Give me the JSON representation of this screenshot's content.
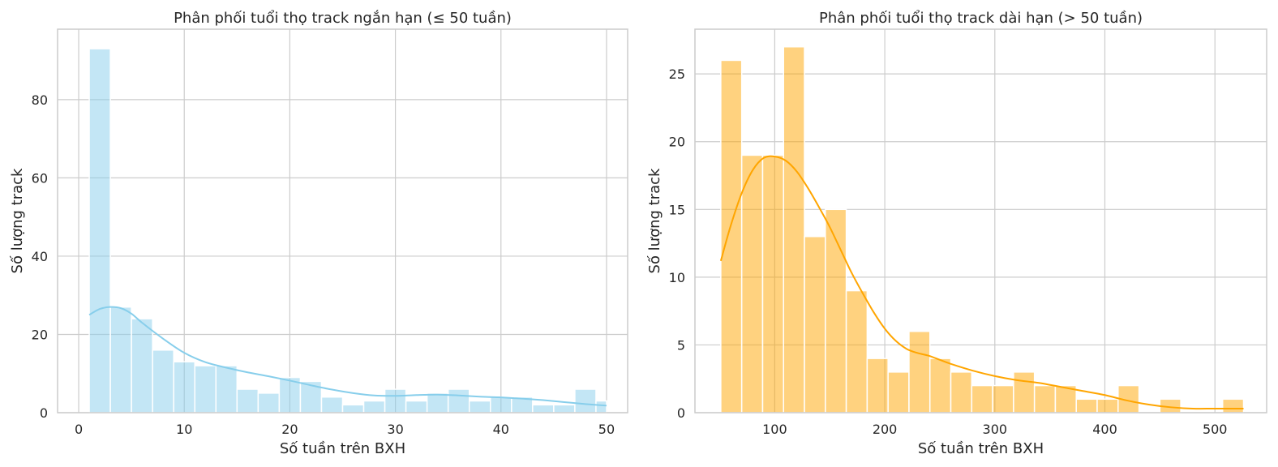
{
  "chart_data": [
    {
      "type": "bar",
      "title": "Phân phối tuổi thọ track ngắn hạn (≤ 50 tuần)",
      "xlabel": "Số tuần trên BXH",
      "ylabel": "Số lượng track",
      "xlim": [
        -2,
        52
      ],
      "ylim": [
        0,
        98
      ],
      "xticks": [
        0,
        10,
        20,
        30,
        40,
        50
      ],
      "yticks": [
        0,
        20,
        40,
        60,
        80
      ],
      "grid": true,
      "bar_color": "#87CEEB",
      "kde_color": "#87CEEB",
      "bins": [
        {
          "x0": 1,
          "x1": 3,
          "value": 93
        },
        {
          "x0": 3,
          "x1": 5,
          "value": 27
        },
        {
          "x0": 5,
          "x1": 7,
          "value": 24
        },
        {
          "x0": 7,
          "x1": 9,
          "value": 16
        },
        {
          "x0": 9,
          "x1": 11,
          "value": 13
        },
        {
          "x0": 11,
          "x1": 13,
          "value": 12
        },
        {
          "x0": 13,
          "x1": 15,
          "value": 12
        },
        {
          "x0": 15,
          "x1": 17,
          "value": 6
        },
        {
          "x0": 17,
          "x1": 19,
          "value": 5
        },
        {
          "x0": 19,
          "x1": 21,
          "value": 9
        },
        {
          "x0": 21,
          "x1": 23,
          "value": 8
        },
        {
          "x0": 23,
          "x1": 25,
          "value": 4
        },
        {
          "x0": 25,
          "x1": 27,
          "value": 2
        },
        {
          "x0": 27,
          "x1": 29,
          "value": 3
        },
        {
          "x0": 29,
          "x1": 31,
          "value": 6
        },
        {
          "x0": 31,
          "x1": 33,
          "value": 3
        },
        {
          "x0": 33,
          "x1": 35,
          "value": 5
        },
        {
          "x0": 35,
          "x1": 37,
          "value": 6
        },
        {
          "x0": 37,
          "x1": 39,
          "value": 3
        },
        {
          "x0": 39,
          "x1": 41,
          "value": 4
        },
        {
          "x0": 41,
          "x1": 43,
          "value": 4
        },
        {
          "x0": 43,
          "x1": 45,
          "value": 2
        },
        {
          "x0": 45,
          "x1": 47,
          "value": 2
        },
        {
          "x0": 47,
          "x1": 49,
          "value": 6
        },
        {
          "x0": 49,
          "x1": 50,
          "value": 3
        }
      ],
      "kde": {
        "x": [
          1,
          2,
          3,
          4,
          5,
          6,
          8,
          10,
          12,
          14,
          16,
          18,
          20,
          22,
          24,
          26,
          28,
          30,
          32,
          34,
          36,
          38,
          40,
          42,
          44,
          46,
          48,
          50
        ],
        "y": [
          25,
          26.5,
          27,
          26.7,
          25.3,
          23,
          18.9,
          15.3,
          12.9,
          11.5,
          10.3,
          9.3,
          8.2,
          7,
          5.9,
          5,
          4.4,
          4.3,
          4.5,
          4.6,
          4.4,
          4.1,
          3.9,
          3.6,
          3.2,
          2.7,
          2.2,
          1.8
        ]
      }
    },
    {
      "type": "bar",
      "title": "Phân phối tuổi thọ track dài hạn (> 50 tuần)",
      "xlabel": "Số tuần trên BXH",
      "ylabel": "Số lượng track",
      "xlim": [
        27.5,
        547
      ],
      "ylim": [
        0,
        28.3
      ],
      "xticks": [
        100,
        200,
        300,
        400,
        500
      ],
      "yticks": [
        0,
        5,
        10,
        15,
        20,
        25
      ],
      "grid": true,
      "bar_color": "#FFA500",
      "kde_color": "#FFA500",
      "bins": [
        {
          "x0": 51,
          "x1": 70,
          "value": 26
        },
        {
          "x0": 70,
          "x1": 89,
          "value": 19
        },
        {
          "x0": 89,
          "x1": 108,
          "value": 19
        },
        {
          "x0": 108,
          "x1": 127,
          "value": 27
        },
        {
          "x0": 127,
          "x1": 146,
          "value": 13
        },
        {
          "x0": 146,
          "x1": 165,
          "value": 15
        },
        {
          "x0": 165,
          "x1": 184,
          "value": 9
        },
        {
          "x0": 184,
          "x1": 203,
          "value": 4
        },
        {
          "x0": 203,
          "x1": 222,
          "value": 3
        },
        {
          "x0": 222,
          "x1": 241,
          "value": 6
        },
        {
          "x0": 241,
          "x1": 260,
          "value": 4
        },
        {
          "x0": 260,
          "x1": 279,
          "value": 3
        },
        {
          "x0": 279,
          "x1": 298,
          "value": 2
        },
        {
          "x0": 298,
          "x1": 317,
          "value": 2
        },
        {
          "x0": 317,
          "x1": 336,
          "value": 3
        },
        {
          "x0": 336,
          "x1": 355,
          "value": 2
        },
        {
          "x0": 355,
          "x1": 374,
          "value": 2
        },
        {
          "x0": 374,
          "x1": 393,
          "value": 1
        },
        {
          "x0": 393,
          "x1": 412,
          "value": 1
        },
        {
          "x0": 412,
          "x1": 431,
          "value": 2
        },
        {
          "x0": 431,
          "x1": 450,
          "value": 0
        },
        {
          "x0": 450,
          "x1": 469,
          "value": 1
        },
        {
          "x0": 469,
          "x1": 488,
          "value": 0
        },
        {
          "x0": 488,
          "x1": 507,
          "value": 0
        },
        {
          "x0": 507,
          "x1": 526,
          "value": 1
        }
      ],
      "kde": {
        "x": [
          51,
          60,
          70,
          80,
          90,
          100,
          110,
          120,
          130,
          140,
          150,
          160,
          170,
          180,
          190,
          200,
          210,
          220,
          230,
          240,
          250,
          260,
          280,
          300,
          320,
          340,
          360,
          380,
          400,
          420,
          440,
          460,
          480,
          500,
          526
        ],
        "y": [
          11.2,
          13.8,
          16.2,
          17.9,
          18.8,
          18.9,
          18.6,
          17.8,
          16.6,
          15.2,
          13.7,
          12,
          10.3,
          8.8,
          7.4,
          6.2,
          5.3,
          4.7,
          4.4,
          4.2,
          3.9,
          3.6,
          3.1,
          2.7,
          2.4,
          2.2,
          1.9,
          1.6,
          1.3,
          0.9,
          0.6,
          0.4,
          0.3,
          0.3,
          0.3
        ]
      }
    }
  ]
}
